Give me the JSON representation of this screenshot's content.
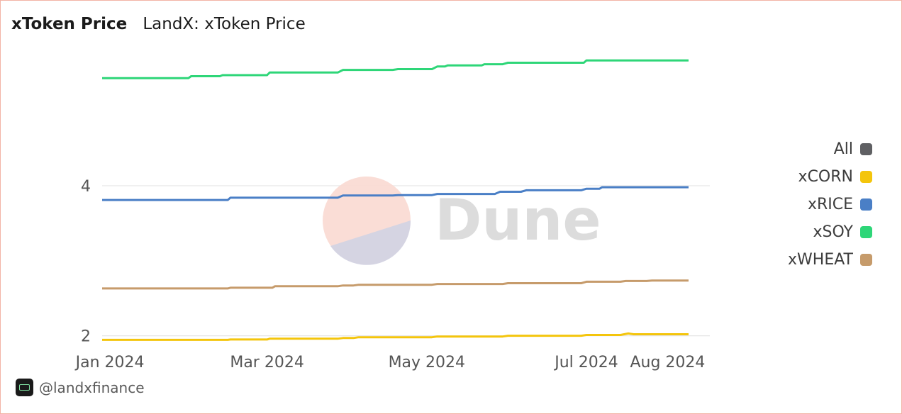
{
  "header": {
    "title": "xToken Price",
    "subtitle": "LandX: xToken Price"
  },
  "footer": {
    "handle": "@landxfinance"
  },
  "watermark": {
    "text": "Dune"
  },
  "chart_data": {
    "type": "line",
    "title": "xToken Price",
    "subtitle": "LandX: xToken Price",
    "xlabel": "",
    "ylabel": "",
    "x_ticks": [
      "Jan 2024",
      "Mar 2024",
      "May 2024",
      "Jul 2024",
      "Aug 2024"
    ],
    "x_tick_dates": [
      "2024-01-01",
      "2024-03-01",
      "2024-05-01",
      "2024-07-01",
      "2024-08-01"
    ],
    "y_ticks": [
      2,
      4
    ],
    "ylim": [
      1.93,
      5.9
    ],
    "grid": true,
    "legend_position": "right",
    "legend": [
      {
        "name": "All",
        "color": "#5f6063"
      },
      {
        "name": "xCORN",
        "color": "#f4c50c"
      },
      {
        "name": "xRICE",
        "color": "#4a7fc6"
      },
      {
        "name": "xSOY",
        "color": "#2ed678"
      },
      {
        "name": "xWHEAT",
        "color": "#c69b6b"
      }
    ],
    "series": [
      {
        "name": "xSOY",
        "color": "#2ed678",
        "points": [
          [
            "2023-12-29",
            5.435
          ],
          [
            "2024-01-31",
            5.435
          ],
          [
            "2024-02-01",
            5.46
          ],
          [
            "2024-02-12",
            5.46
          ],
          [
            "2024-02-13",
            5.475
          ],
          [
            "2024-03-01",
            5.475
          ],
          [
            "2024-03-02",
            5.51
          ],
          [
            "2024-03-28",
            5.51
          ],
          [
            "2024-03-30",
            5.545
          ],
          [
            "2024-04-18",
            5.545
          ],
          [
            "2024-04-20",
            5.555
          ],
          [
            "2024-05-03",
            5.555
          ],
          [
            "2024-05-05",
            5.59
          ],
          [
            "2024-05-08",
            5.59
          ],
          [
            "2024-05-09",
            5.605
          ],
          [
            "2024-05-22",
            5.605
          ],
          [
            "2024-05-23",
            5.62
          ],
          [
            "2024-05-30",
            5.62
          ],
          [
            "2024-06-01",
            5.64
          ],
          [
            "2024-06-30",
            5.64
          ],
          [
            "2024-07-01",
            5.67
          ],
          [
            "2024-08-09",
            5.67
          ]
        ]
      },
      {
        "name": "xRICE",
        "color": "#4a7fc6",
        "points": [
          [
            "2023-12-29",
            3.81
          ],
          [
            "2024-02-15",
            3.81
          ],
          [
            "2024-02-16",
            3.84
          ],
          [
            "2024-03-28",
            3.84
          ],
          [
            "2024-03-30",
            3.87
          ],
          [
            "2024-04-18",
            3.87
          ],
          [
            "2024-04-20",
            3.875
          ],
          [
            "2024-05-03",
            3.875
          ],
          [
            "2024-05-05",
            3.89
          ],
          [
            "2024-05-27",
            3.89
          ],
          [
            "2024-05-29",
            3.92
          ],
          [
            "2024-06-06",
            3.92
          ],
          [
            "2024-06-08",
            3.94
          ],
          [
            "2024-06-29",
            3.94
          ],
          [
            "2024-07-01",
            3.96
          ],
          [
            "2024-07-06",
            3.96
          ],
          [
            "2024-07-07",
            3.98
          ],
          [
            "2024-08-09",
            3.98
          ]
        ]
      },
      {
        "name": "xWHEAT",
        "color": "#c69b6b",
        "points": [
          [
            "2023-12-29",
            2.63
          ],
          [
            "2024-02-15",
            2.63
          ],
          [
            "2024-02-16",
            2.64
          ],
          [
            "2024-03-03",
            2.64
          ],
          [
            "2024-03-04",
            2.66
          ],
          [
            "2024-03-28",
            2.66
          ],
          [
            "2024-03-30",
            2.67
          ],
          [
            "2024-04-03",
            2.67
          ],
          [
            "2024-04-05",
            2.68
          ],
          [
            "2024-05-03",
            2.68
          ],
          [
            "2024-05-05",
            2.69
          ],
          [
            "2024-05-30",
            2.69
          ],
          [
            "2024-06-01",
            2.7
          ],
          [
            "2024-06-29",
            2.7
          ],
          [
            "2024-07-01",
            2.72
          ],
          [
            "2024-07-14",
            2.72
          ],
          [
            "2024-07-16",
            2.73
          ],
          [
            "2024-07-24",
            2.73
          ],
          [
            "2024-07-26",
            2.735
          ],
          [
            "2024-08-09",
            2.735
          ]
        ]
      },
      {
        "name": "xCORN",
        "color": "#f4c50c",
        "points": [
          [
            "2023-12-29",
            1.945
          ],
          [
            "2024-02-15",
            1.945
          ],
          [
            "2024-02-16",
            1.95
          ],
          [
            "2024-03-01",
            1.95
          ],
          [
            "2024-03-02",
            1.96
          ],
          [
            "2024-03-28",
            1.96
          ],
          [
            "2024-03-30",
            1.97
          ],
          [
            "2024-04-03",
            1.97
          ],
          [
            "2024-04-05",
            1.98
          ],
          [
            "2024-05-03",
            1.98
          ],
          [
            "2024-05-05",
            1.99
          ],
          [
            "2024-05-30",
            1.99
          ],
          [
            "2024-06-01",
            2.0
          ],
          [
            "2024-06-29",
            2.0
          ],
          [
            "2024-07-01",
            2.01
          ],
          [
            "2024-07-14",
            2.01
          ],
          [
            "2024-07-17",
            2.03
          ],
          [
            "2024-07-19",
            2.02
          ],
          [
            "2024-08-09",
            2.02
          ]
        ]
      }
    ]
  }
}
